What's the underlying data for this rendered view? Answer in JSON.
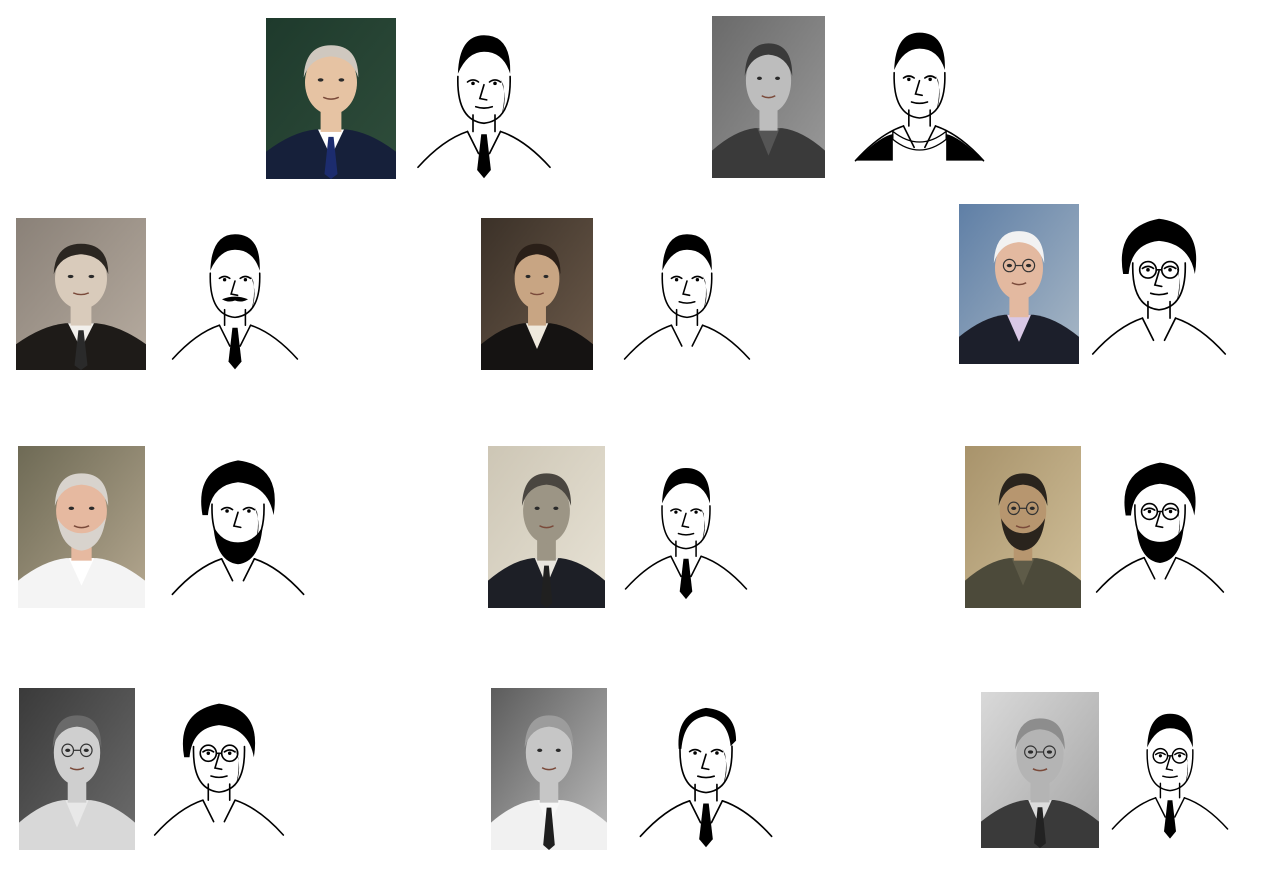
{
  "pairs": [
    {
      "id": "p1",
      "bg": [
        "#1e3a2c",
        "#2f4d3b"
      ],
      "skin": "#e6c3a3",
      "hair": "#cfc8bf",
      "suit": "#16203a",
      "shirt": "#ffffff",
      "tie": "#1c2c6e",
      "glasses": false,
      "beard": false,
      "sketch": "suit"
    },
    {
      "id": "p2",
      "bg": [
        "#6a6a6a",
        "#9a9a9a"
      ],
      "skin": "#bdbdbd",
      "hair": "#3a3a3a",
      "suit": "#3a3a3a",
      "shirt": "#555555",
      "tie": null,
      "glasses": false,
      "beard": false,
      "sketch": "sweater"
    },
    {
      "id": "p3",
      "bg": [
        "#8a8178",
        "#b7aca0"
      ],
      "skin": "#d9cbbb",
      "hair": "#2b2621",
      "suit": "#1e1b18",
      "shirt": "#f2f0ec",
      "tie": "#2a2a2a",
      "glasses": false,
      "beard": false,
      "sketch": "moustache"
    },
    {
      "id": "p4",
      "bg": [
        "#3b3128",
        "#6c5a4a"
      ],
      "skin": "#c8a583",
      "hair": "#2a1f18",
      "suit": "#151312",
      "shirt": "#efe9dd",
      "tie": null,
      "glasses": false,
      "beard": false,
      "sketch": "collar"
    },
    {
      "id": "p5",
      "bg": [
        "#5f7fa6",
        "#a9b8c6"
      ],
      "skin": "#e3b9a0",
      "hair": "#f2f2f2",
      "suit": "#1c1f2b",
      "shirt": "#d9c8e6",
      "tie": null,
      "glasses": true,
      "beard": false,
      "sketch": "glasses-open"
    },
    {
      "id": "p6",
      "bg": [
        "#6e6a55",
        "#b5a890"
      ],
      "skin": "#e6b9a0",
      "hair": "#d8d3cd",
      "suit": "#f4f4f4",
      "shirt": "#ffffff",
      "tie": null,
      "glasses": false,
      "beard": true,
      "sketch": "beard-smile"
    },
    {
      "id": "p7",
      "bg": [
        "#cdc6b5",
        "#e8e3d6"
      ],
      "skin": "#9c9585",
      "hair": "#4a4640",
      "suit": "#1d1f26",
      "shirt": "#e9e6df",
      "tie": "#202020",
      "glasses": false,
      "beard": false,
      "sketch": "suit"
    },
    {
      "id": "p8",
      "bg": [
        "#a8936b",
        "#d1c09a"
      ],
      "skin": "#b7966f",
      "hair": "#2a241d",
      "suit": "#4c4a3a",
      "shirt": "#5e5b48",
      "tie": null,
      "glasses": true,
      "beard": true,
      "sketch": "beard-glasses"
    },
    {
      "id": "p9",
      "bg": [
        "#3a3a3a",
        "#6d6d6d"
      ],
      "skin": "#cfcfcf",
      "hair": "#6a6a6a",
      "suit": "#d8d8d8",
      "shirt": "#e8e8e8",
      "tie": null,
      "glasses": true,
      "beard": false,
      "sketch": "curly-glasses"
    },
    {
      "id": "p10",
      "bg": [
        "#5c5c5c",
        "#bdbdbd"
      ],
      "skin": "#c6c6c6",
      "hair": "#9c9c9c",
      "suit": "#f1f1f1",
      "shirt": "#f7f7f7",
      "tie": "#1e1e1e",
      "glasses": false,
      "beard": false,
      "sketch": "bald-down"
    },
    {
      "id": "p11",
      "bg": [
        "#d9d9d9",
        "#a3a3a3"
      ],
      "skin": "#b4b4b4",
      "hair": "#8d8d8d",
      "suit": "#3a3a3a",
      "shirt": "#dcdcdc",
      "tie": "#222222",
      "glasses": true,
      "beard": false,
      "sketch": "glasses-suit"
    }
  ]
}
